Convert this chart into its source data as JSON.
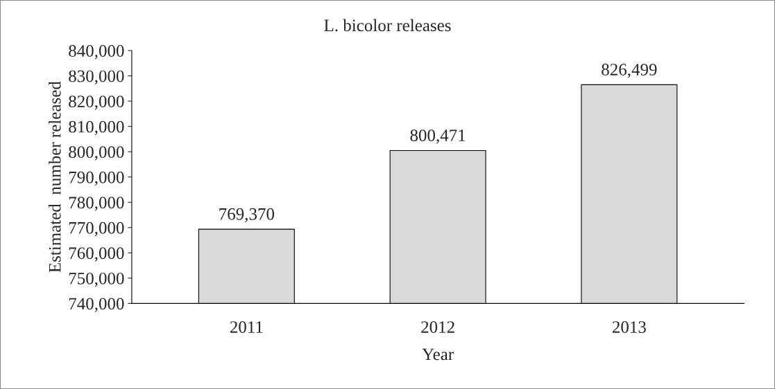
{
  "chart_data": {
    "type": "bar",
    "title": "L. bicolor releases",
    "xlabel": "Year",
    "ylabel": "Estimated  number released",
    "categories": [
      "2011",
      "2012",
      "2013"
    ],
    "values": [
      769370,
      800471,
      826499
    ],
    "value_labels": [
      "769,370",
      "800,471",
      "826,499"
    ],
    "color": "#d9d9d9",
    "ylim": [
      740000,
      840000
    ],
    "yticks": [
      {
        "value": 740000,
        "label": "740,000"
      },
      {
        "value": 750000,
        "label": "750,000"
      },
      {
        "value": 760000,
        "label": "760,000"
      },
      {
        "value": 770000,
        "label": "770,000"
      },
      {
        "value": 780000,
        "label": "780,000"
      },
      {
        "value": 790000,
        "label": "790,000"
      },
      {
        "value": 800000,
        "label": "800,000"
      },
      {
        "value": 810000,
        "label": "810,000"
      },
      {
        "value": 820000,
        "label": "820,000"
      },
      {
        "value": 830000,
        "label": "830,000"
      },
      {
        "value": 840000,
        "label": "840,000"
      }
    ],
    "grid": false,
    "legend": false
  }
}
